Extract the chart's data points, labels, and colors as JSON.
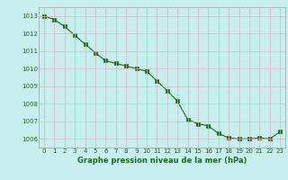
{
  "x": [
    0,
    1,
    2,
    3,
    4,
    5,
    6,
    7,
    8,
    9,
    10,
    11,
    12,
    13,
    14,
    15,
    16,
    17,
    18,
    19,
    20,
    21,
    22,
    23
  ],
  "y": [
    1013.0,
    1012.8,
    1012.4,
    1011.9,
    1011.4,
    1010.9,
    1010.45,
    1010.3,
    1010.15,
    1010.0,
    1009.85,
    1009.3,
    1008.75,
    1008.15,
    1007.1,
    1006.85,
    1006.75,
    1006.3,
    1006.05,
    1006.0,
    1006.0,
    1006.05,
    1006.0,
    1006.4
  ],
  "ylim": [
    1005.5,
    1013.5
  ],
  "yticks": [
    1006,
    1007,
    1008,
    1009,
    1010,
    1011,
    1012,
    1013
  ],
  "xlabel": "Graphe pression niveau de la mer (hPa)",
  "line_color": "#1a6b1a",
  "marker_color": "#1a6b1a",
  "bg_color": "#c8eef0",
  "grid_color": "#d0b8b8",
  "xlabel_color": "#1a6b1a",
  "tick_fontsize": 5,
  "xlabel_fontsize": 6,
  "marker_size": 2.5,
  "linewidth": 0.8
}
